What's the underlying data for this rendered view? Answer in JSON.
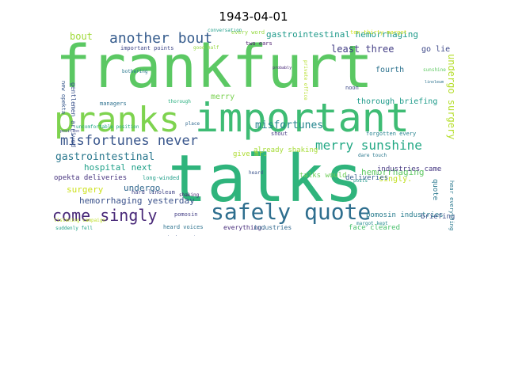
{
  "title": "1943-04-01",
  "words": [
    {
      "text": "frankfurt",
      "color": "#5bc863"
    },
    {
      "text": "talks",
      "color": "#2fb47c"
    },
    {
      "text": "important",
      "color": "#3ebc74"
    },
    {
      "text": "pranks",
      "color": "#7ed34f"
    },
    {
      "text": "safely quote",
      "color": "#2e6e8e"
    },
    {
      "text": "merry sunshine",
      "color": "#22a884"
    },
    {
      "text": "misfortunes never",
      "color": "#39568c"
    },
    {
      "text": "another bout",
      "color": "#365c8d"
    },
    {
      "text": "come singly",
      "color": "#482878"
    },
    {
      "text": "gastrointestinal hemorrhaging",
      "color": "#1f9a8a"
    },
    {
      "text": "misfortunes",
      "color": "#25858e"
    },
    {
      "text": "gastrointestinal",
      "color": "#2a788e"
    },
    {
      "text": "hospital next",
      "color": "#1fa088"
    },
    {
      "text": "hemorrhaging yesterday",
      "color": "#3b528b"
    },
    {
      "text": "undergo surgery",
      "color": "#b5de2b"
    },
    {
      "text": "least three",
      "color": "#433e85"
    },
    {
      "text": "merry",
      "color": "#7ad151"
    },
    {
      "text": "bout",
      "color": "#a0da39"
    },
    {
      "text": "surgery",
      "color": "#cde11d"
    },
    {
      "text": "undergo",
      "color": "#31688e"
    },
    {
      "text": "opekta deliveries",
      "color": "#46337e"
    },
    {
      "text": "hemorrhaging",
      "color": "#5ec962"
    },
    {
      "text": "thorough briefing",
      "color": "#1e9b8a"
    },
    {
      "text": "singly.",
      "color": "#c2df23"
    },
    {
      "text": "fourth",
      "color": "#2c728e"
    },
    {
      "text": "go lie",
      "color": "#3e4989"
    },
    {
      "text": "already shaking",
      "color": "#a5db36"
    },
    {
      "text": "talks would",
      "color": "#6ece58"
    },
    {
      "text": "give mr.",
      "color": "#addc30"
    },
    {
      "text": "deliveries",
      "color": "#355f8d"
    },
    {
      "text": "pomosin industries",
      "color": "#287c8e"
    },
    {
      "text": "industries came",
      "color": "#453781"
    },
    {
      "text": "quote",
      "color": "#2a788e"
    },
    {
      "text": "briefing",
      "color": "#3b528b"
    },
    {
      "text": "face cleared",
      "color": "#4ac16d"
    },
    {
      "text": "everything.",
      "color": "#472d7b"
    },
    {
      "text": "industries",
      "color": "#31688e"
    },
    {
      "text": "heard voices",
      "color": "#2c728e"
    },
    {
      "text": "pomosin",
      "color": "#433e85"
    },
    {
      "text": "hard linoleum",
      "color": "#414487"
    },
    {
      "text": "long-winded",
      "color": "#1f9e89"
    },
    {
      "text": "gentlemen arrived",
      "color": "#3b528b"
    },
    {
      "text": "important points",
      "color": "#3f4788"
    },
    {
      "text": "new opekta",
      "color": "#38588c"
    },
    {
      "text": "managers",
      "color": "#2d708e"
    },
    {
      "text": "two ears",
      "color": "#48186a"
    },
    {
      "text": "ten-thirty margot",
      "color": "#d0e11c"
    },
    {
      "text": "forgotten every",
      "color": "#26828e"
    },
    {
      "text": "dare touch",
      "color": "#2a788e"
    },
    {
      "text": "posts",
      "color": "#1f988b"
    },
    {
      "text": "noon",
      "color": "#3e4a89"
    },
    {
      "text": "every word",
      "color": "#95d840"
    },
    {
      "text": "good half",
      "color": "#95d840"
    },
    {
      "text": "suddenly fell",
      "color": "#1fa187"
    },
    {
      "text": "listening campaign",
      "color": "#bddf26"
    },
    {
      "text": "uncomfortable position",
      "color": "#22a884"
    },
    {
      "text": "hear everything",
      "color": "#2a788e"
    },
    {
      "text": "shout",
      "color": "#443a83"
    },
    {
      "text": "place",
      "color": "#31688e"
    },
    {
      "text": "bothering",
      "color": "#2a788e"
    },
    {
      "text": "shaking",
      "color": "#482173"
    },
    {
      "text": "margot kept",
      "color": "#238a8d"
    },
    {
      "text": "thorough",
      "color": "#29af7f"
    },
    {
      "text": "yesterday morning",
      "color": "#3b528b"
    },
    {
      "text": "sunshine",
      "color": "#5ec962"
    },
    {
      "text": "position",
      "color": "#3f4788"
    },
    {
      "text": "conversation",
      "color": "#1f9e89"
    },
    {
      "text": "probably",
      "color": "#482878"
    },
    {
      "text": "private office",
      "color": "#b5de2b"
    },
    {
      "text": "heard",
      "color": "#3b528b"
    },
    {
      "text": "linoleum",
      "color": "#2c728e"
    }
  ]
}
